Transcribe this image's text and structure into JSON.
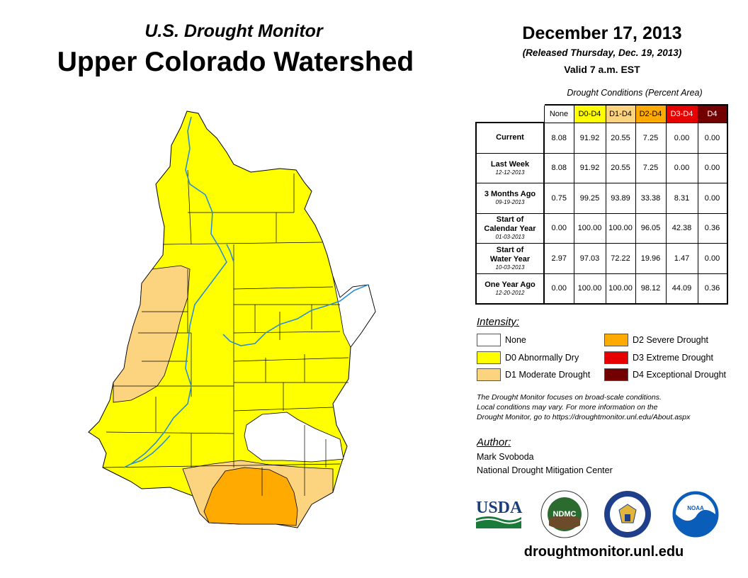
{
  "header": {
    "subtitle": "U.S. Drought Monitor",
    "title": "Upper Colorado Watershed",
    "date": "December 17, 2013",
    "released": "(Released Thursday, Dec. 19, 2013)",
    "valid": "Valid 7 a.m. EST"
  },
  "table": {
    "caption": "Drought Conditions (Percent Area)",
    "columns": [
      "None",
      "D0-D4",
      "D1-D4",
      "D2-D4",
      "D3-D4",
      "D4"
    ],
    "column_colors": [
      "#ffffff",
      "#ffff00",
      "#fcd37f",
      "#ffaa00",
      "#e60000",
      "#730000"
    ],
    "rows": [
      {
        "label": "Current",
        "label2": "",
        "date": "",
        "values": [
          "8.08",
          "91.92",
          "20.55",
          "7.25",
          "0.00",
          "0.00"
        ]
      },
      {
        "label": "Last Week",
        "label2": "",
        "date": "12-12-2013",
        "values": [
          "8.08",
          "91.92",
          "20.55",
          "7.25",
          "0.00",
          "0.00"
        ]
      },
      {
        "label": "3 Months Ago",
        "label2": "",
        "date": "09-19-2013",
        "values": [
          "0.75",
          "99.25",
          "93.89",
          "33.38",
          "8.31",
          "0.00"
        ]
      },
      {
        "label": "Start of",
        "label2": "Calendar Year",
        "date": "01-03-2013",
        "values": [
          "0.00",
          "100.00",
          "100.00",
          "96.05",
          "42.38",
          "0.36"
        ]
      },
      {
        "label": "Start of",
        "label2": "Water Year",
        "date": "10-03-2013",
        "values": [
          "2.97",
          "97.03",
          "72.22",
          "19.96",
          "1.47",
          "0.00"
        ]
      },
      {
        "label": "One Year Ago",
        "label2": "",
        "date": "12-20-2012",
        "values": [
          "0.00",
          "100.00",
          "100.00",
          "98.12",
          "44.09",
          "0.36"
        ]
      }
    ]
  },
  "legend": {
    "title": "Intensity:",
    "items": [
      {
        "label": "None",
        "color": "#ffffff"
      },
      {
        "label": "D0 Abnormally Dry",
        "color": "#ffff00"
      },
      {
        "label": "D1 Moderate Drought",
        "color": "#fcd37f"
      },
      {
        "label": "D2 Severe Drought",
        "color": "#ffaa00"
      },
      {
        "label": "D3 Extreme Drought",
        "color": "#e60000"
      },
      {
        "label": "D4 Exceptional Drought",
        "color": "#730000"
      }
    ]
  },
  "note": {
    "line1": "The Drought Monitor focuses on broad-scale conditions.",
    "line2": "Local conditions may vary. For more information on the",
    "line3": "Drought Monitor, go to https://droughtmonitor.unl.edu/About.aspx"
  },
  "author": {
    "title": "Author:",
    "name": "Mark Svoboda",
    "org": "National Drought Mitigation Center"
  },
  "logos": {
    "usda": "USDA",
    "ndmc": "NDMC",
    "noaa": "NOAA"
  },
  "website": "droughtmonitor.unl.edu",
  "map_colors": {
    "none": "#ffffff",
    "d0": "#ffff00",
    "d1": "#fcd37f",
    "d2": "#ffaa00",
    "river": "#2b8fd6",
    "border": "#000000"
  }
}
